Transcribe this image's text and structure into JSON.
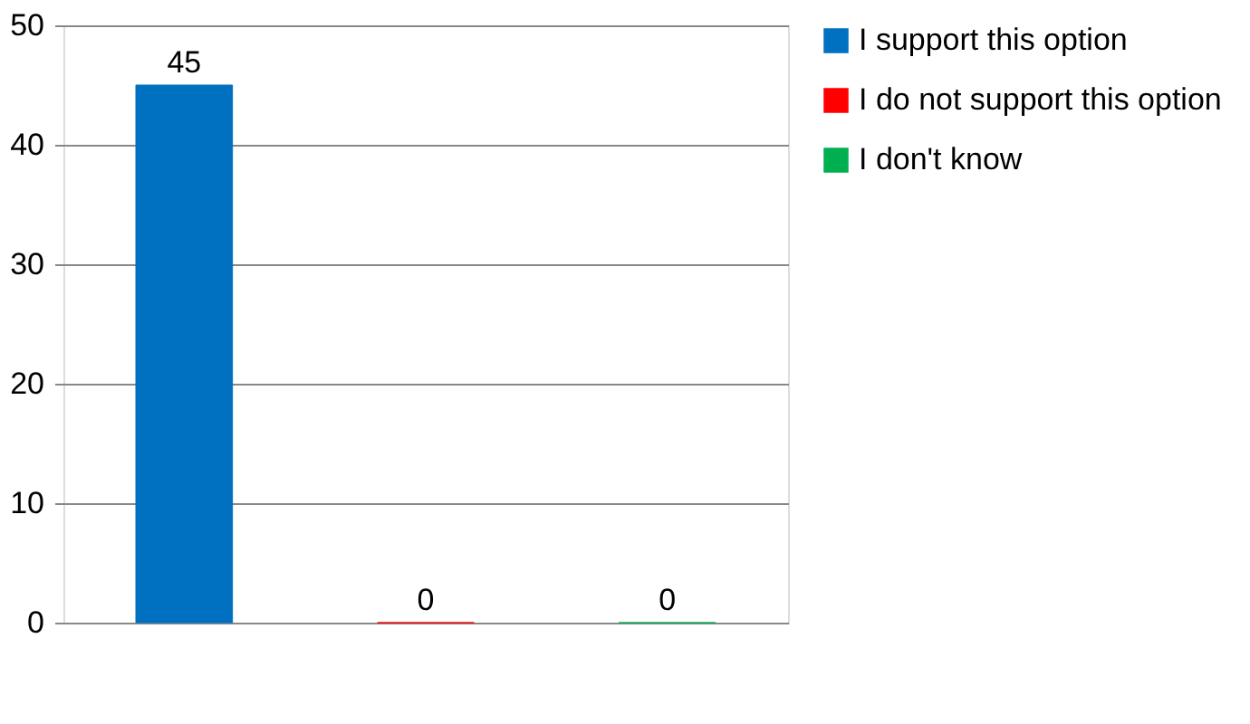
{
  "chart_data": {
    "type": "bar",
    "categories": [
      null
    ],
    "series": [
      {
        "name": "I support this option",
        "color": "#0070c0",
        "values": [
          45
        ]
      },
      {
        "name": "I do not support this option",
        "color": "#ff0000",
        "values": [
          0
        ]
      },
      {
        "name": "I don't know",
        "color": "#00b050",
        "values": [
          0
        ]
      }
    ],
    "ylim": [
      0,
      50
    ],
    "yticks": [
      0,
      10,
      20,
      30,
      40,
      50
    ],
    "grid": "y",
    "legend": "right",
    "data_labels": true,
    "tick_labels": "y"
  }
}
